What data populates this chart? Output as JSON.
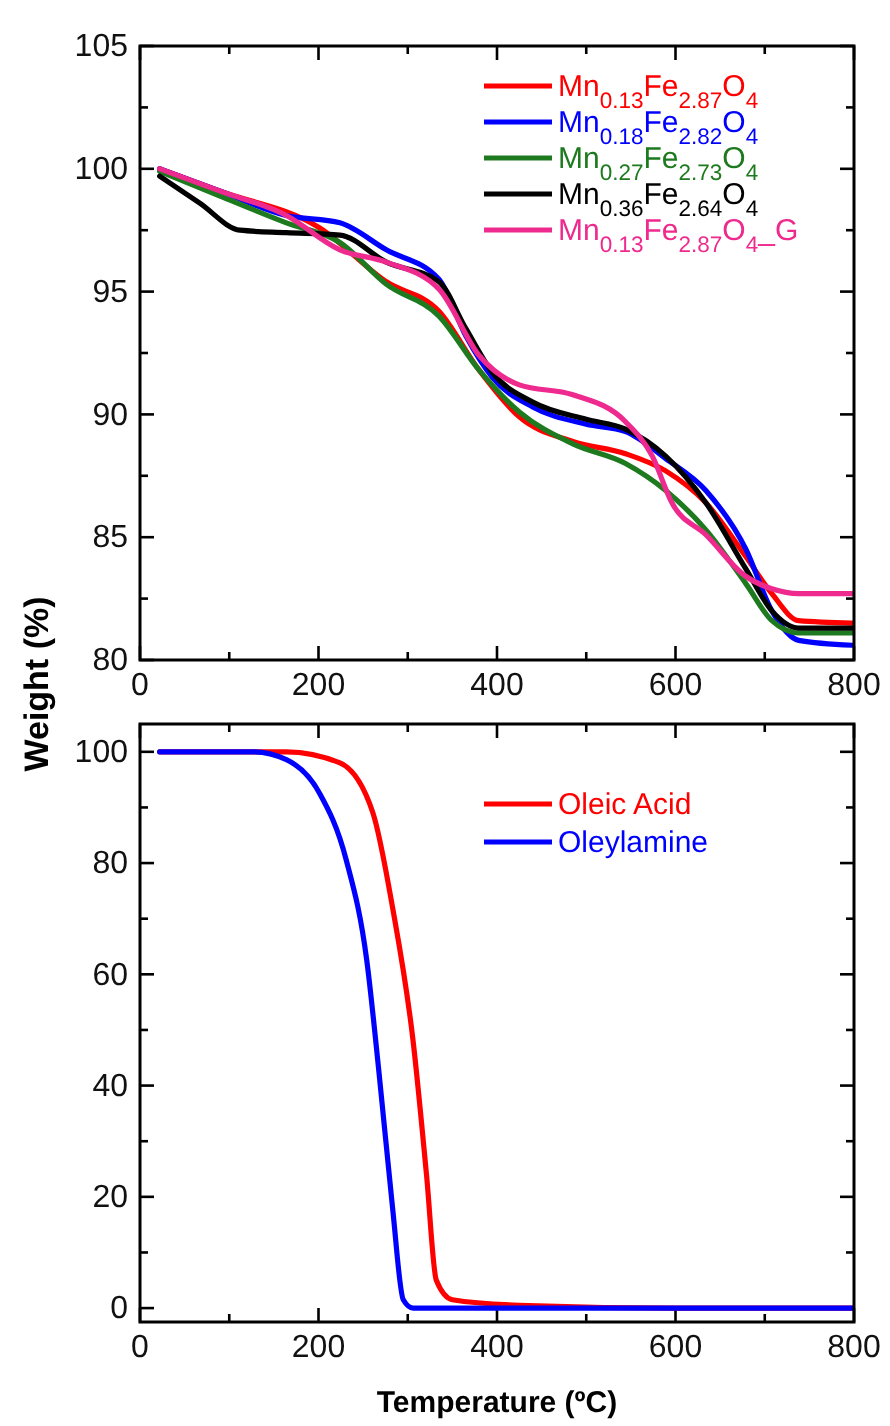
{
  "chart_data": [
    {
      "type": "line",
      "xlim": [
        0,
        800
      ],
      "ylim": [
        80,
        105
      ],
      "xticks": [
        0,
        {
          "value": 100,
          "label": null
        },
        200,
        {
          "value": 300,
          "label": null
        },
        400,
        {
          "value": 500,
          "label": null
        },
        600,
        {
          "value": 700,
          "label": null
        },
        800
      ],
      "yticks": [
        80,
        {
          "value": 82.5,
          "label": null
        },
        85,
        {
          "value": 87.5,
          "label": null
        },
        90,
        {
          "value": 92.5,
          "label": null
        },
        95,
        {
          "value": 97.5,
          "label": null
        },
        100,
        {
          "value": 102.5,
          "label": null
        },
        105
      ],
      "legend": "top right",
      "grid": false,
      "series": [
        {
          "name": "Mn$_{0.13}$Fe$_{2.87}$O$_{4}$",
          "color": "#ff0000",
          "x": [
            22,
            89,
            201,
            276,
            335,
            380,
            425,
            485,
            544,
            589,
            634,
            679,
            708,
            738,
            798
          ],
          "values": [
            100,
            99.1,
            97.6,
            95.4,
            94.2,
            91.8,
            89.9,
            88.9,
            88.4,
            87.7,
            86.4,
            84.2,
            82.7,
            81.6,
            81.5
          ]
        },
        {
          "name": "Mn$_{0.18}$Fe$_{2.82}$O$_{4}$",
          "color": "#0000ff",
          "x": [
            22,
            89,
            164,
            224,
            276,
            335,
            365,
            395,
            440,
            500,
            544,
            589,
            634,
            679,
            708,
            738,
            798
          ],
          "values": [
            100,
            99.1,
            98.1,
            97.8,
            96.7,
            95.5,
            93.2,
            91.5,
            90.3,
            89.6,
            89.3,
            88.2,
            86.9,
            84.5,
            82.0,
            80.8,
            80.6
          ]
        },
        {
          "name": "Mn$_{0.27}$Fe$_{2.73}$O$_{4}$",
          "color": "#1e7a1e",
          "x": [
            22,
            89,
            164,
            224,
            276,
            335,
            380,
            425,
            485,
            544,
            589,
            634,
            679,
            708,
            738,
            798
          ],
          "values": [
            99.9,
            98.9,
            97.8,
            97.0,
            95.3,
            94.0,
            91.8,
            90.1,
            88.8,
            88.0,
            86.9,
            85.3,
            83.1,
            81.6,
            81.1,
            81.1
          ]
        },
        {
          "name": "Mn$_{0.36}$Fe$_{2.64}$O$_{4}$",
          "color": "#000000",
          "x": [
            22,
            67,
            112,
            164,
            224,
            276,
            335,
            365,
            395,
            440,
            500,
            544,
            589,
            634,
            679,
            708,
            738,
            798
          ],
          "values": [
            99.7,
            98.6,
            97.5,
            97.4,
            97.3,
            96.2,
            95.4,
            93.5,
            91.7,
            90.5,
            89.8,
            89.4,
            88.3,
            86.4,
            83.7,
            82.0,
            81.3,
            81.3
          ]
        },
        {
          "name": "Mn$_{0.13}$Fe$_{2.87}$O$_{4}$_G",
          "color": "#ee2a8f",
          "x": [
            22,
            89,
            164,
            224,
            276,
            335,
            380,
            425,
            485,
            544,
            574,
            596,
            634,
            679,
            708,
            738,
            798
          ],
          "values": [
            100,
            99.1,
            98.1,
            96.7,
            96.2,
            95.1,
            92.4,
            91.2,
            90.8,
            89.7,
            88.3,
            86.4,
            85.1,
            83.4,
            82.9,
            82.7,
            82.7
          ]
        }
      ]
    },
    {
      "type": "line",
      "xlabel": "Temperature (ºC)",
      "ylabel": "Weight (%)",
      "xlim": [
        0,
        800
      ],
      "ylim": [
        -2.5,
        105
      ],
      "xticks": [
        0,
        {
          "value": 100,
          "label": null
        },
        200,
        {
          "value": 300,
          "label": null
        },
        400,
        {
          "value": 500,
          "label": null
        },
        600,
        {
          "value": 700,
          "label": null
        },
        800
      ],
      "yticks": [
        0,
        {
          "value": 10,
          "label": null
        },
        20,
        {
          "value": 30,
          "label": null
        },
        40,
        {
          "value": 50,
          "label": null
        },
        60,
        {
          "value": 70,
          "label": null
        },
        80,
        {
          "value": 90,
          "label": null
        },
        100
      ],
      "legend": "top right",
      "grid": false,
      "series": [
        {
          "name": "Oleic Acid",
          "color": "#ff0000",
          "x": [
            22,
            164,
            224,
            261,
            283,
            306,
            321,
            332,
            350,
            425,
            600,
            800
          ],
          "values": [
            100,
            100,
            98,
            89,
            72,
            48,
            24,
            5,
            1.5,
            0.5,
            0,
            0
          ]
        },
        {
          "name": "Oleylamine",
          "color": "#0000ff",
          "x": [
            22,
            127,
            164,
            201,
            231,
            254,
            268,
            283,
            295,
            306,
            500,
            800
          ],
          "values": [
            100,
            100,
            98.6,
            92.6,
            80.6,
            62.6,
            42,
            18,
            1.5,
            0,
            0,
            0
          ]
        }
      ]
    }
  ]
}
